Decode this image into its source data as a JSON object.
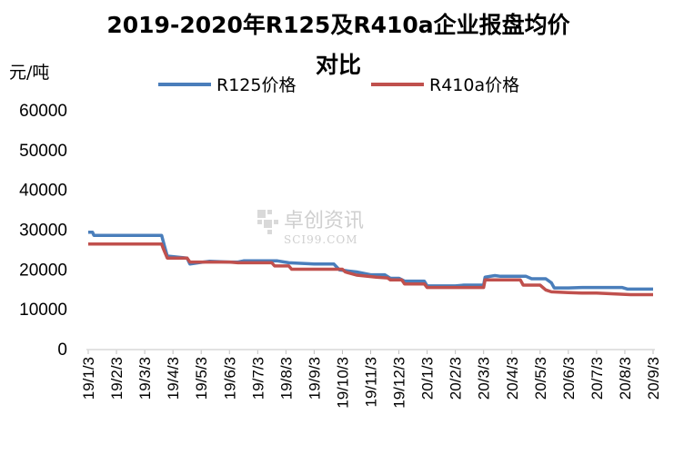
{
  "chart_data": {
    "type": "line",
    "title_line1": "2019-2020年R125及R410a企业报盘均价",
    "title_line2": "对比",
    "unit_label": "元/吨",
    "ylim": [
      0,
      60000
    ],
    "yticks": [
      "60000",
      "50000",
      "40000",
      "30000",
      "20000",
      "10000",
      "0"
    ],
    "x_labels": [
      "19/1/3",
      "19/2/3",
      "19/3/3",
      "19/4/3",
      "19/5/3",
      "19/6/3",
      "19/7/3",
      "19/8/3",
      "19/9/3",
      "19/10/3",
      "19/11/3",
      "19/12/3",
      "20/1/3",
      "20/2/3",
      "20/3/3",
      "20/4/3",
      "20/5/3",
      "20/6/3",
      "20/7/3",
      "20/8/3",
      "20/9/3"
    ],
    "grid": false,
    "legend_position": "top",
    "watermark_cn": "卓创资讯",
    "watermark_en": "SCI99.COM",
    "series": [
      {
        "name": "R125价格",
        "color": "#4a7ebb",
        "points": [
          [
            0,
            29500
          ],
          [
            0.15,
            29500
          ],
          [
            0.2,
            28700
          ],
          [
            2.6,
            28700
          ],
          [
            2.7,
            26000
          ],
          [
            2.8,
            23500
          ],
          [
            3.5,
            23000
          ],
          [
            3.6,
            21500
          ],
          [
            3.9,
            21800
          ],
          [
            4.3,
            22200
          ],
          [
            5.0,
            22000
          ],
          [
            5.3,
            22000
          ],
          [
            5.5,
            22300
          ],
          [
            6.7,
            22300
          ],
          [
            7.1,
            21800
          ],
          [
            8.0,
            21500
          ],
          [
            8.7,
            21500
          ],
          [
            8.9,
            20000
          ],
          [
            9.5,
            19500
          ],
          [
            10.0,
            18800
          ],
          [
            10.5,
            18800
          ],
          [
            10.7,
            17900
          ],
          [
            11.0,
            17900
          ],
          [
            11.2,
            17200
          ],
          [
            11.9,
            17200
          ],
          [
            12.0,
            16000
          ],
          [
            13.0,
            16000
          ],
          [
            13.3,
            16200
          ],
          [
            14.0,
            16200
          ],
          [
            14.05,
            18200
          ],
          [
            14.4,
            18600
          ],
          [
            14.6,
            18400
          ],
          [
            15.5,
            18400
          ],
          [
            15.7,
            17800
          ],
          [
            16.2,
            17800
          ],
          [
            16.4,
            16800
          ],
          [
            16.5,
            15500
          ],
          [
            17.0,
            15500
          ],
          [
            17.5,
            15600
          ],
          [
            18.9,
            15600
          ],
          [
            19.1,
            15200
          ],
          [
            20.0,
            15200
          ]
        ]
      },
      {
        "name": "R410a价格",
        "color": "#c0504d",
        "points": [
          [
            0,
            26500
          ],
          [
            2.6,
            26500
          ],
          [
            2.65,
            25500
          ],
          [
            2.8,
            23000
          ],
          [
            3.5,
            23000
          ],
          [
            3.6,
            22000
          ],
          [
            5.0,
            22000
          ],
          [
            5.3,
            21800
          ],
          [
            6.5,
            21800
          ],
          [
            6.6,
            21000
          ],
          [
            7.1,
            21000
          ],
          [
            7.2,
            20200
          ],
          [
            9.0,
            20200
          ],
          [
            9.1,
            19500
          ],
          [
            9.5,
            18700
          ],
          [
            10.2,
            18200
          ],
          [
            10.6,
            18000
          ],
          [
            10.7,
            17500
          ],
          [
            11.1,
            17500
          ],
          [
            11.2,
            16500
          ],
          [
            11.9,
            16500
          ],
          [
            12.0,
            15600
          ],
          [
            14.0,
            15600
          ],
          [
            14.05,
            17500
          ],
          [
            15.3,
            17500
          ],
          [
            15.4,
            16200
          ],
          [
            16.0,
            16200
          ],
          [
            16.2,
            15000
          ],
          [
            16.4,
            14500
          ],
          [
            17.0,
            14300
          ],
          [
            17.5,
            14200
          ],
          [
            18.0,
            14200
          ],
          [
            18.6,
            14000
          ],
          [
            19.2,
            13800
          ],
          [
            20.0,
            13800
          ]
        ]
      }
    ]
  }
}
